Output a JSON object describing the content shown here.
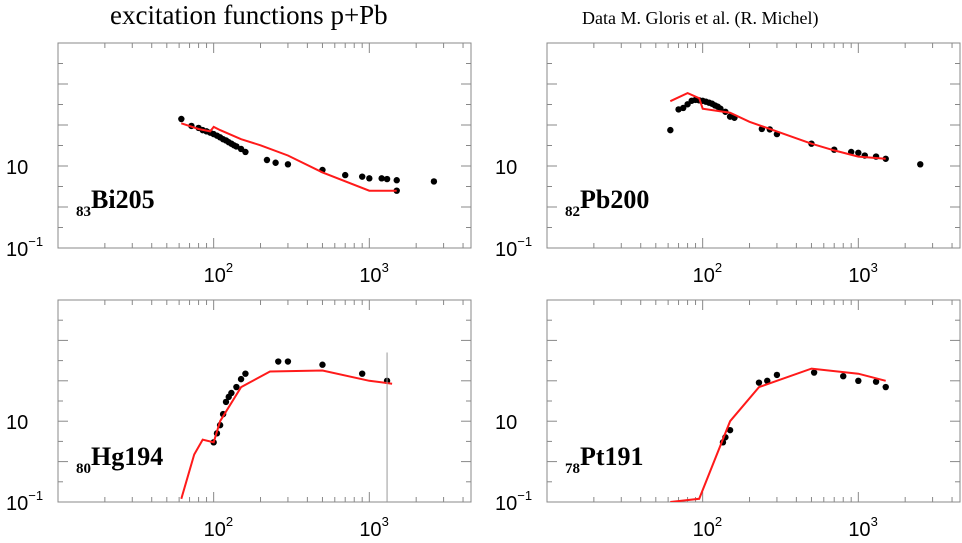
{
  "figure": {
    "title": "excitation functions p+Pb",
    "credit": "Data M. Gloris et al. (R. Michel)"
  },
  "chart_data": [
    {
      "type": "scatter",
      "nuclide": {
        "Z": "83",
        "symbol": "Bi205"
      },
      "xscale": "log",
      "yscale": "log",
      "xlim": [
        10,
        4500
      ],
      "ylim": [
        0.1,
        10000
      ],
      "xticks": [
        {
          "base": "10",
          "exp": "2",
          "value": 100
        },
        {
          "base": "10",
          "exp": "3",
          "value": 1000
        }
      ],
      "yticks": [
        {
          "base": "10",
          "exp": "",
          "value": 10
        },
        {
          "base": "10",
          "exp": "−1",
          "value": 0.1
        }
      ],
      "series": [
        {
          "kind": "points",
          "x": [
            62,
            72,
            80,
            85,
            90,
            95,
            100,
            105,
            110,
            115,
            120,
            125,
            130,
            135,
            140,
            150,
            160,
            220,
            250,
            300,
            500,
            700,
            900,
            1000,
            1200,
            1300,
            1500,
            1500,
            2600
          ],
          "y": [
            140,
            95,
            85,
            75,
            70,
            65,
            60,
            55,
            50,
            45,
            42,
            38,
            35,
            32,
            30,
            26,
            22,
            14,
            12,
            11,
            8,
            6,
            5.5,
            5,
            5,
            4.8,
            4.5,
            2.5,
            4.2
          ]
        },
        {
          "kind": "line",
          "x": [
            62,
            80,
            95,
            100,
            110,
            150,
            200,
            300,
            500,
            1000,
            1500
          ],
          "y": [
            110,
            80,
            70,
            90,
            75,
            45,
            32,
            18,
            7,
            2.5,
            2.5
          ]
        }
      ]
    },
    {
      "type": "scatter",
      "nuclide": {
        "Z": "82",
        "symbol": "Pb200"
      },
      "xscale": "log",
      "yscale": "log",
      "xlim": [
        10,
        4500
      ],
      "ylim": [
        0.1,
        10000
      ],
      "xticks": [
        {
          "base": "10",
          "exp": "2",
          "value": 100
        },
        {
          "base": "10",
          "exp": "3",
          "value": 1000
        }
      ],
      "yticks": [
        {
          "base": "10",
          "exp": "",
          "value": 10
        },
        {
          "base": "10",
          "exp": "−1",
          "value": 0.1
        }
      ],
      "series": [
        {
          "kind": "points",
          "x": [
            62,
            70,
            75,
            80,
            85,
            90,
            95,
            100,
            105,
            110,
            115,
            120,
            125,
            130,
            140,
            150,
            160,
            240,
            270,
            300,
            500,
            700,
            900,
            1000,
            1100,
            1300,
            1500,
            2500
          ],
          "y": [
            75,
            240,
            260,
            320,
            390,
            410,
            400,
            390,
            370,
            350,
            330,
            300,
            280,
            250,
            210,
            160,
            150,
            80,
            78,
            60,
            35,
            25,
            22,
            21,
            18,
            17,
            15,
            11
          ]
        },
        {
          "kind": "line",
          "x": [
            62,
            80,
            95,
            100,
            150,
            200,
            300,
            500,
            700,
            1000,
            1500
          ],
          "y": [
            380,
            600,
            450,
            250,
            200,
            120,
            70,
            35,
            24,
            17,
            15
          ]
        }
      ]
    },
    {
      "type": "scatter",
      "nuclide": {
        "Z": "80",
        "symbol": "Hg194"
      },
      "xscale": "log",
      "yscale": "log",
      "xlim": [
        10,
        4500
      ],
      "ylim": [
        0.1,
        10000
      ],
      "xticks": [
        {
          "base": "10",
          "exp": "2",
          "value": 100
        },
        {
          "base": "10",
          "exp": "3",
          "value": 1000
        }
      ],
      "yticks": [
        {
          "base": "10",
          "exp": "",
          "value": 10
        },
        {
          "base": "10",
          "exp": "−1",
          "value": 0.1
        }
      ],
      "series": [
        {
          "kind": "points",
          "x": [
            100,
            105,
            110,
            115,
            120,
            125,
            130,
            140,
            150,
            160,
            260,
            300,
            500,
            900,
            1300
          ],
          "y": [
            3,
            5,
            8,
            15,
            30,
            40,
            50,
            70,
            110,
            150,
            300,
            300,
            250,
            150,
            100
          ]
        },
        {
          "kind": "line",
          "x": [
            62,
            75,
            85,
            100,
            110,
            150,
            230,
            500,
            1000,
            1400
          ],
          "y": [
            0.12,
            1.5,
            3.5,
            3,
            10,
            70,
            170,
            180,
            100,
            85
          ]
        },
        {
          "kind": "errorbar",
          "x": 1300,
          "ylow": 0.1,
          "yhigh": 500
        }
      ]
    },
    {
      "type": "scatter",
      "nuclide": {
        "Z": "78",
        "symbol": "Pt191"
      },
      "xscale": "log",
      "yscale": "log",
      "xlim": [
        10,
        4500
      ],
      "ylim": [
        0.1,
        10000
      ],
      "xticks": [
        {
          "base": "10",
          "exp": "2",
          "value": 100
        },
        {
          "base": "10",
          "exp": "3",
          "value": 1000
        }
      ],
      "yticks": [
        {
          "base": "10",
          "exp": "",
          "value": 10
        },
        {
          "base": "10",
          "exp": "−1",
          "value": 0.1
        }
      ],
      "series": [
        {
          "kind": "points",
          "x": [
            135,
            140,
            150,
            230,
            260,
            300,
            520,
            800,
            1000,
            1300,
            1500
          ],
          "y": [
            3,
            4,
            6,
            90,
            100,
            140,
            160,
            130,
            100,
            95,
            70
          ]
        },
        {
          "kind": "line",
          "x": [
            62,
            95,
            150,
            230,
            500,
            1000,
            1500
          ],
          "y": [
            0.1,
            0.12,
            10,
            70,
            200,
            150,
            100
          ]
        }
      ]
    }
  ]
}
